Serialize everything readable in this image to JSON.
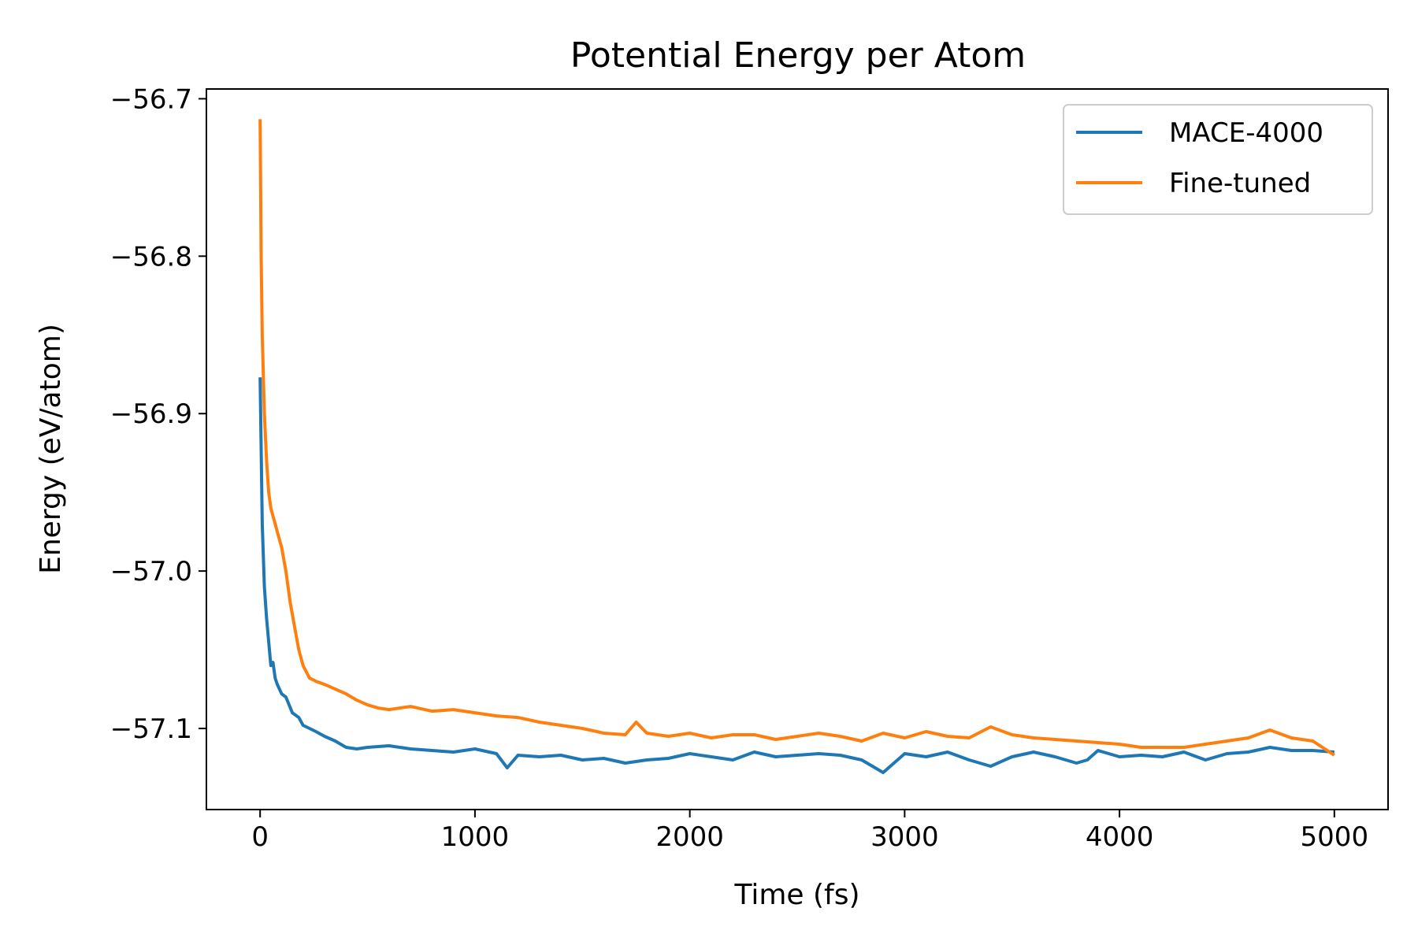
{
  "chart_data": {
    "type": "line",
    "title": "Potential Energy per Atom",
    "xlabel": "Time (fs)",
    "ylabel": "Energy (eV/atom)",
    "xlim": [
      -250,
      5250
    ],
    "ylim": [
      -57.1515,
      -56.6938
    ],
    "xticks": [
      0,
      1000,
      2000,
      3000,
      4000,
      5000
    ],
    "xtick_labels": [
      "0",
      "1000",
      "2000",
      "3000",
      "4000",
      "5000"
    ],
    "yticks": [
      -57.1,
      -57.0,
      -56.9,
      -56.8,
      -56.7
    ],
    "ytick_labels": [
      "−57.1",
      "−57.0",
      "−56.9",
      "−56.8",
      "−56.7"
    ],
    "grid": false,
    "legend_position": "top-right",
    "series": [
      {
        "name": "MACE-4000",
        "color": "#1f77b4",
        "x": [
          0,
          10,
          20,
          30,
          40,
          50,
          60,
          70,
          80,
          100,
          120,
          150,
          180,
          200,
          230,
          260,
          300,
          350,
          400,
          450,
          500,
          600,
          700,
          800,
          900,
          1000,
          1100,
          1150,
          1200,
          1300,
          1400,
          1500,
          1600,
          1700,
          1800,
          1900,
          2000,
          2100,
          2200,
          2300,
          2400,
          2500,
          2600,
          2700,
          2800,
          2900,
          3000,
          3100,
          3200,
          3300,
          3400,
          3500,
          3600,
          3700,
          3800,
          3850,
          3900,
          4000,
          4100,
          4200,
          4300,
          4400,
          4500,
          4600,
          4700,
          4800,
          4900,
          5000
        ],
        "y": [
          -56.877,
          -56.97,
          -57.01,
          -57.03,
          -57.045,
          -57.06,
          -57.058,
          -57.068,
          -57.072,
          -57.078,
          -57.08,
          -57.09,
          -57.093,
          -57.098,
          -57.1,
          -57.102,
          -57.105,
          -57.108,
          -57.112,
          -57.113,
          -57.112,
          -57.111,
          -57.113,
          -57.114,
          -57.115,
          -57.113,
          -57.116,
          -57.125,
          -57.117,
          -57.118,
          -57.117,
          -57.12,
          -57.119,
          -57.122,
          -57.12,
          -57.119,
          -57.116,
          -57.118,
          -57.12,
          -57.115,
          -57.118,
          -57.117,
          -57.116,
          -57.117,
          -57.12,
          -57.128,
          -57.116,
          -57.118,
          -57.115,
          -57.12,
          -57.124,
          -57.118,
          -57.115,
          -57.118,
          -57.122,
          -57.12,
          -57.114,
          -57.118,
          -57.117,
          -57.118,
          -57.115,
          -57.12,
          -57.116,
          -57.115,
          -57.112,
          -57.114,
          -57.114,
          -57.115
        ]
      },
      {
        "name": "Fine-tuned",
        "color": "#ff7f0e",
        "x": [
          0,
          5,
          10,
          20,
          30,
          40,
          50,
          60,
          70,
          80,
          90,
          100,
          120,
          140,
          160,
          180,
          200,
          230,
          260,
          300,
          350,
          400,
          450,
          500,
          550,
          600,
          700,
          800,
          900,
          1000,
          1100,
          1200,
          1300,
          1400,
          1500,
          1600,
          1700,
          1750,
          1800,
          1900,
          2000,
          2100,
          2200,
          2300,
          2400,
          2500,
          2600,
          2700,
          2800,
          2900,
          3000,
          3100,
          3200,
          3300,
          3400,
          3500,
          3600,
          3700,
          3800,
          3900,
          4000,
          4100,
          4200,
          4300,
          4400,
          4500,
          4600,
          4700,
          4800,
          4900,
          5000
        ],
        "y": [
          -56.713,
          -56.8,
          -56.85,
          -56.9,
          -56.93,
          -56.95,
          -56.96,
          -56.965,
          -56.97,
          -56.975,
          -56.98,
          -56.985,
          -57.0,
          -57.02,
          -57.035,
          -57.05,
          -57.06,
          -57.068,
          -57.07,
          -57.072,
          -57.075,
          -57.078,
          -57.082,
          -57.085,
          -57.087,
          -57.088,
          -57.086,
          -57.089,
          -57.088,
          -57.09,
          -57.092,
          -57.093,
          -57.096,
          -57.098,
          -57.1,
          -57.103,
          -57.104,
          -57.096,
          -57.103,
          -57.105,
          -57.103,
          -57.106,
          -57.104,
          -57.104,
          -57.107,
          -57.105,
          -57.103,
          -57.105,
          -57.108,
          -57.103,
          -57.106,
          -57.102,
          -57.105,
          -57.106,
          -57.099,
          -57.104,
          -57.106,
          -57.107,
          -57.108,
          -57.109,
          -57.11,
          -57.112,
          -57.112,
          -57.112,
          -57.11,
          -57.108,
          -57.106,
          -57.101,
          -57.106,
          -57.108,
          -57.117
        ]
      }
    ]
  }
}
